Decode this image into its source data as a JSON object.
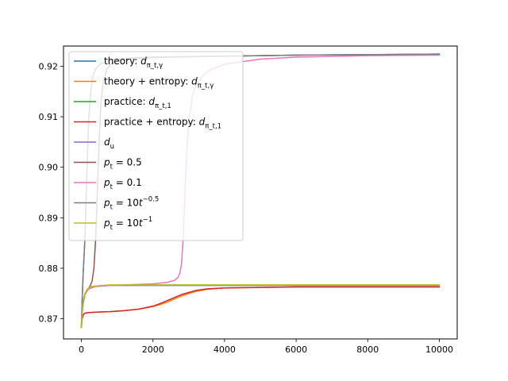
{
  "chart_data": {
    "type": "line",
    "title": "",
    "xlabel": "",
    "ylabel": "",
    "xlim": [
      -500,
      10500
    ],
    "ylim": [
      0.866,
      0.924
    ],
    "xticks": [
      0,
      2000,
      4000,
      6000,
      8000,
      10000
    ],
    "xtick_labels": [
      "0",
      "2000",
      "4000",
      "6000",
      "8000",
      "10000"
    ],
    "yticks": [
      0.87,
      0.88,
      0.89,
      0.9,
      0.91,
      0.92
    ],
    "ytick_labels": [
      "0.87",
      "0.88",
      "0.89",
      "0.90",
      "0.91",
      "0.92"
    ],
    "grid": false,
    "legend_placement": "upper-left",
    "series": [
      {
        "name": "theory: d_{π_t,γ}",
        "legend_parts": [
          [
            "theory: ",
            ""
          ],
          [
            "d",
            "it"
          ],
          [
            "π_t,γ",
            "sub"
          ]
        ],
        "color": "#1f77b4",
        "x": [
          0,
          20,
          50,
          100,
          150,
          200,
          260,
          320,
          400,
          500,
          600,
          800,
          1000,
          1500,
          2000,
          3000,
          4000,
          6000,
          8000,
          10000
        ],
        "y": [
          0.8685,
          0.8735,
          0.879,
          0.886,
          0.898,
          0.909,
          0.915,
          0.918,
          0.9195,
          0.9203,
          0.9207,
          0.9212,
          0.9214,
          0.9217,
          0.9218,
          0.9219,
          0.922,
          0.9222,
          0.9223,
          0.9224
        ]
      },
      {
        "name": "theory + entropy: d_{π_t,γ}",
        "legend_parts": [
          [
            "theory + entropy: ",
            ""
          ],
          [
            "d",
            "it"
          ],
          [
            "π_t,γ",
            "sub"
          ]
        ],
        "color": "#ff7f0e",
        "x": [
          0,
          20,
          50,
          100,
          200,
          400,
          800,
          1200,
          1600,
          2000,
          2200,
          2400,
          2600,
          2800,
          3000,
          3200,
          3500,
          4000,
          5000,
          6000,
          8000,
          10000
        ],
        "y": [
          0.8683,
          0.87,
          0.8708,
          0.8711,
          0.8712,
          0.8713,
          0.8714,
          0.8716,
          0.8719,
          0.8724,
          0.8728,
          0.8733,
          0.8739,
          0.8745,
          0.875,
          0.8754,
          0.8758,
          0.8761,
          0.8762,
          0.8763,
          0.8763,
          0.8763
        ]
      },
      {
        "name": "practice: d_{π_t,1}",
        "legend_parts": [
          [
            "practice: ",
            ""
          ],
          [
            "d",
            "it"
          ],
          [
            "π_t,1",
            "sub"
          ]
        ],
        "color": "#2ca02c",
        "x": [
          0,
          20,
          50,
          100,
          150,
          200,
          300,
          400,
          600,
          800,
          1000,
          1500,
          2000,
          4000,
          6000,
          8000,
          10000
        ],
        "y": [
          0.8683,
          0.871,
          0.873,
          0.8748,
          0.8755,
          0.8759,
          0.8762,
          0.8764,
          0.8765,
          0.8766,
          0.8766,
          0.8766,
          0.8766,
          0.8766,
          0.8766,
          0.8766,
          0.8766
        ]
      },
      {
        "name": "practice + entropy: d_{π_t,1}",
        "legend_parts": [
          [
            "practice + entropy: ",
            ""
          ],
          [
            "d",
            "it"
          ],
          [
            "π_t,1",
            "sub"
          ]
        ],
        "color": "#d62728",
        "x": [
          0,
          20,
          50,
          100,
          200,
          400,
          800,
          1200,
          1600,
          2000,
          2200,
          2400,
          2600,
          2800,
          3000,
          3200,
          3500,
          4000,
          5000,
          6000,
          8000,
          10000
        ],
        "y": [
          0.8683,
          0.87,
          0.8708,
          0.8711,
          0.8712,
          0.8713,
          0.8714,
          0.8716,
          0.8719,
          0.8725,
          0.873,
          0.8736,
          0.8742,
          0.8748,
          0.8752,
          0.8756,
          0.8759,
          0.8761,
          0.8762,
          0.8763,
          0.8763,
          0.8763
        ]
      },
      {
        "name": "d_u",
        "legend_parts": [
          [
            "d",
            "it"
          ],
          [
            "u",
            "sub"
          ]
        ],
        "color": "#9467bd",
        "x": [
          0,
          20,
          50,
          100,
          150,
          200,
          300,
          400,
          600,
          800,
          1000,
          2000,
          4000,
          6000,
          8000,
          10000
        ],
        "y": [
          0.8683,
          0.871,
          0.873,
          0.8748,
          0.8755,
          0.8759,
          0.8762,
          0.8764,
          0.8765,
          0.8766,
          0.8766,
          0.8766,
          0.8766,
          0.8766,
          0.8766,
          0.8766
        ]
      },
      {
        "name": "p_t = 0.5",
        "legend_parts": [
          [
            "p",
            "it"
          ],
          [
            "t",
            "sub"
          ],
          [
            " = 0.5",
            ""
          ]
        ],
        "color": "#8c564b",
        "x": [
          0,
          20,
          50,
          100,
          150,
          200,
          250,
          300,
          350,
          400,
          450,
          500,
          550,
          600,
          700,
          800,
          1000,
          1500,
          2000,
          3000,
          4000,
          6000,
          8000,
          10000
        ],
        "y": [
          0.8683,
          0.8715,
          0.8735,
          0.875,
          0.8756,
          0.876,
          0.8766,
          0.8775,
          0.88,
          0.886,
          0.896,
          0.906,
          0.913,
          0.9165,
          0.9192,
          0.9203,
          0.9211,
          0.9215,
          0.9217,
          0.9219,
          0.922,
          0.9222,
          0.9223,
          0.9224
        ]
      },
      {
        "name": "p_t = 0.1",
        "legend_parts": [
          [
            "p",
            "it"
          ],
          [
            "t",
            "sub"
          ],
          [
            " = 0.1",
            ""
          ]
        ],
        "color": "#e377c2",
        "x": [
          0,
          20,
          50,
          100,
          200,
          400,
          800,
          1200,
          1600,
          2000,
          2400,
          2600,
          2700,
          2750,
          2800,
          2850,
          2900,
          2950,
          3000,
          3100,
          3200,
          3400,
          3600,
          4000,
          5000,
          6000,
          8000,
          10000
        ],
        "y": [
          0.8683,
          0.871,
          0.873,
          0.8748,
          0.8759,
          0.8764,
          0.8766,
          0.8767,
          0.8768,
          0.8769,
          0.8772,
          0.8776,
          0.8782,
          0.879,
          0.881,
          0.887,
          0.896,
          0.904,
          0.909,
          0.914,
          0.9163,
          0.9182,
          0.9193,
          0.9204,
          0.9214,
          0.9218,
          0.9221,
          0.9222
        ]
      },
      {
        "name": "p_t = 10t^{-0.5}",
        "legend_parts": [
          [
            "p",
            "it"
          ],
          [
            "t",
            "sub"
          ],
          [
            " = 10",
            ""
          ],
          [
            "t",
            "it"
          ],
          [
            "−0.5",
            "sup"
          ]
        ],
        "color": "#7f7f7f",
        "x": [
          0,
          20,
          50,
          100,
          150,
          200,
          260,
          320,
          400,
          500,
          600,
          800,
          1000,
          1500,
          2000,
          3000,
          4000,
          6000,
          8000,
          10000
        ],
        "y": [
          0.8685,
          0.8735,
          0.879,
          0.886,
          0.898,
          0.909,
          0.915,
          0.918,
          0.9195,
          0.9203,
          0.9207,
          0.9212,
          0.9214,
          0.9217,
          0.9218,
          0.9219,
          0.922,
          0.9222,
          0.9223,
          0.9224
        ]
      },
      {
        "name": "p_t = 10t^{-1}",
        "legend_parts": [
          [
            "p",
            "it"
          ],
          [
            "t",
            "sub"
          ],
          [
            " = 10",
            ""
          ],
          [
            "t",
            "it"
          ],
          [
            "−1",
            "sup"
          ]
        ],
        "color": "#bcbd22",
        "x": [
          0,
          20,
          50,
          100,
          150,
          200,
          300,
          400,
          600,
          800,
          1000,
          2000,
          4000,
          6000,
          8000,
          10000
        ],
        "y": [
          0.8683,
          0.8712,
          0.8732,
          0.875,
          0.8757,
          0.8761,
          0.8764,
          0.8765,
          0.8766,
          0.8767,
          0.8767,
          0.8767,
          0.8767,
          0.8767,
          0.8767,
          0.8767
        ]
      }
    ]
  }
}
